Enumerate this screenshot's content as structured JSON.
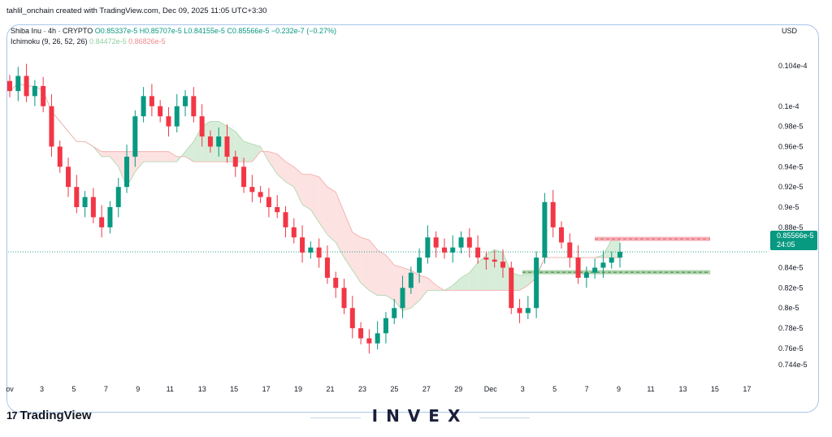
{
  "header": {
    "byline": "tahlil_onchain created with TradingView.com, Dec 09, 2025 11:05 UTC+3:30"
  },
  "legend": {
    "symbol": "Shiba Inu · 4h · CRYPTO",
    "ohlc": "O0.85337e-5 H0.85707e-5 L0.84155e-5 C0.85566e-5 −0.232e-7 (−0.27%)",
    "indicator_name": "Ichimoku (9, 26, 52, 26)",
    "indicator_val_1": "0.84472e-5",
    "indicator_val_2": "0.86826e-5"
  },
  "currency": "USD",
  "price_tag": {
    "price": "0.85566e-5",
    "countdown": "24:05"
  },
  "branding": {
    "logo_mark": "17",
    "logo_text": "TradingView",
    "watermark": "INVEX"
  },
  "colors": {
    "up": "#089981",
    "down": "#f23645",
    "cloud_bull": "#c8e6c9",
    "cloud_bear": "#fcd5d5",
    "accent": "#089981"
  },
  "chart_data": {
    "type": "candlestick",
    "y_axis_ticks": [
      "0.104e-4",
      "0.1e-4",
      "0.98e-5",
      "0.96e-5",
      "0.94e-5",
      "0.92e-5",
      "0.9e-5",
      "0.88e-5",
      "0.86e-5",
      "0.84e-5",
      "0.82e-5",
      "0.8e-5",
      "0.78e-5",
      "0.76e-5",
      "0.744e-5"
    ],
    "y_tick_values": [
      1.04,
      1.0,
      0.98,
      0.96,
      0.94,
      0.92,
      0.9,
      0.88,
      0.86,
      0.84,
      0.82,
      0.8,
      0.78,
      0.76,
      0.744
    ],
    "x_axis_ticks": [
      "ov",
      "3",
      "5",
      "7",
      "9",
      "11",
      "13",
      "15",
      "17",
      "19",
      "21",
      "23",
      "25",
      "27",
      "29",
      "Dec",
      "3",
      "5",
      "7",
      "9",
      "11",
      "13",
      "15",
      "17"
    ],
    "ylim": [
      0.735,
      1.065
    ],
    "last_price": 0.8557,
    "resistance_zone": [
      0.8665,
      0.8705
    ],
    "support_zone": [
      0.8335,
      0.8375
    ],
    "series": [
      {
        "values": [
          1.015,
          1.03,
          1.01,
          1.02,
          1.0,
          0.96,
          0.94,
          0.92,
          0.9,
          0.91,
          0.89,
          0.88,
          0.9,
          0.92,
          0.95,
          0.99,
          1.01,
          1.0,
          0.99,
          0.98,
          1.0,
          1.01,
          0.99,
          0.97,
          0.96,
          0.97,
          0.95,
          0.94,
          0.92,
          0.915,
          0.91,
          0.9,
          0.895,
          0.88,
          0.87,
          0.855,
          0.86,
          0.85,
          0.83,
          0.82,
          0.8,
          0.78,
          0.77,
          0.765,
          0.775,
          0.79,
          0.8,
          0.82,
          0.835,
          0.85,
          0.87,
          0.86,
          0.855,
          0.86,
          0.87,
          0.86,
          0.85,
          0.848,
          0.846,
          0.84,
          0.8,
          0.795,
          0.8,
          0.85,
          0.905,
          0.88,
          0.865,
          0.85,
          0.83,
          0.835,
          0.84,
          0.845,
          0.85,
          0.8557
        ]
      }
    ]
  }
}
